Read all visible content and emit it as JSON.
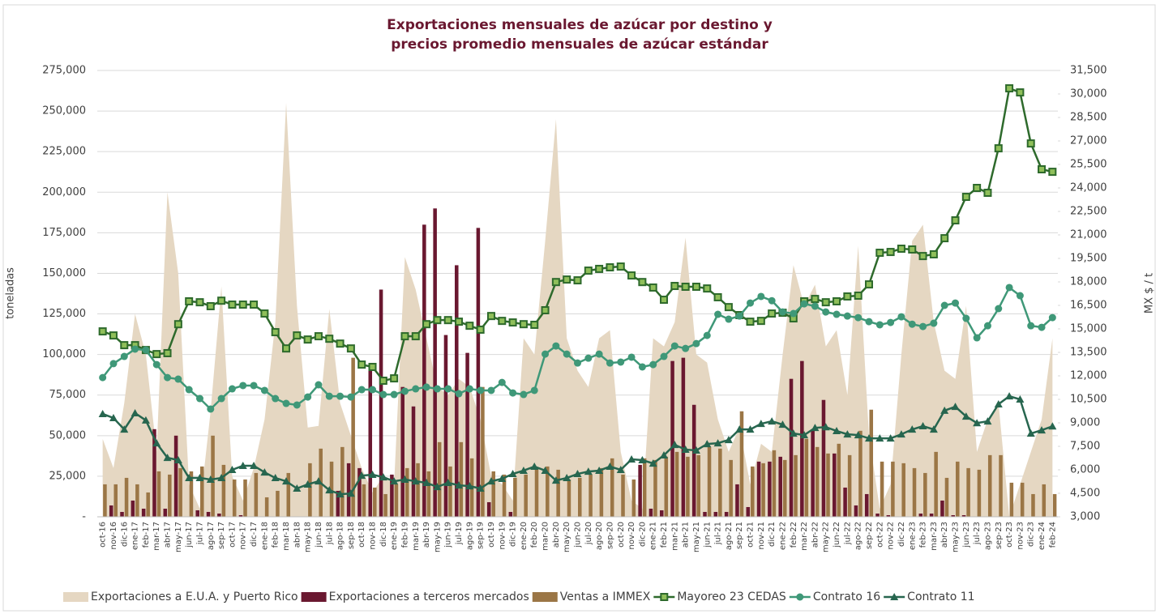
{
  "chart_data": {
    "type": "combo",
    "title": [
      "Exportaciones mensuales de azúcar por destino y",
      "precios promedio mensuales de azúcar estándar"
    ],
    "y_label": "toneladas",
    "y2_label": "MX $ / t",
    "categories": [
      "oct-16",
      "nov-16",
      "dic-16",
      "ene-17",
      "feb-17",
      "mar-17",
      "abr-17",
      "may-17",
      "jun-17",
      "jul-17",
      "ago-17",
      "sep-17",
      "oct-17",
      "nov-17",
      "dic-17",
      "ene-18",
      "feb-18",
      "mar-18",
      "abr-18",
      "may-18",
      "jun-18",
      "jul-18",
      "ago-18",
      "sep-18",
      "oct-18",
      "nov-18",
      "dic-18",
      "ene-19",
      "feb-19",
      "mar-19",
      "abr-19",
      "may-19",
      "jun-19",
      "jul-19",
      "ago-19",
      "sep-19",
      "oct-19",
      "nov-19",
      "dic-19",
      "ene-20",
      "feb-20",
      "mar-20",
      "abr-20",
      "may-20",
      "jun-20",
      "jul-20",
      "ago-20",
      "sep-20",
      "oct-20",
      "nov-20",
      "dic-20",
      "ene-21",
      "feb-21",
      "mar-21",
      "abr-21",
      "may-21",
      "jun-21",
      "jul-21",
      "ago-21",
      "sep-21",
      "oct-21",
      "nov-21",
      "dic-21",
      "ene-22",
      "feb-22",
      "mar-22",
      "abr-22",
      "may-22",
      "jun-22",
      "jul-22",
      "ago-22",
      "sep-22",
      "oct-22",
      "nov-22",
      "dic-22",
      "ene-23",
      "feb-23",
      "mar-23",
      "abr-23",
      "may-23",
      "jun-23",
      "jul-23",
      "ago-23",
      "sep-23",
      "oct-23",
      "nov-23",
      "dic-23",
      "ene-24",
      "feb-24"
    ],
    "ylim": [
      0,
      275000
    ],
    "yticks": [
      {
        "value": 0,
        "label": "-"
      },
      {
        "value": 25000,
        "label": "25,000"
      },
      {
        "value": 50000,
        "label": "50,000"
      },
      {
        "value": 75000,
        "label": "75,000"
      },
      {
        "value": 100000,
        "label": "100,000"
      },
      {
        "value": 125000,
        "label": "125,000"
      },
      {
        "value": 150000,
        "label": "150,000"
      },
      {
        "value": 175000,
        "label": "175,000"
      },
      {
        "value": 200000,
        "label": "200,000"
      },
      {
        "value": 225000,
        "label": "225,000"
      },
      {
        "value": 250000,
        "label": "250,000"
      },
      {
        "value": 275000,
        "label": "275,000"
      }
    ],
    "y2lim": [
      3000,
      31500
    ],
    "y2ticks": [
      {
        "value": 3000,
        "label": "3,000"
      },
      {
        "value": 4500,
        "label": "4,500"
      },
      {
        "value": 6000,
        "label": "6,000"
      },
      {
        "value": 7500,
        "label": "7,500"
      },
      {
        "value": 9000,
        "label": "9,000"
      },
      {
        "value": 10500,
        "label": "10,500"
      },
      {
        "value": 12000,
        "label": "12,000"
      },
      {
        "value": 13500,
        "label": "13,500"
      },
      {
        "value": 15000,
        "label": "15,000"
      },
      {
        "value": 16500,
        "label": "16,500"
      },
      {
        "value": 18000,
        "label": "18,000"
      },
      {
        "value": 19500,
        "label": "19,500"
      },
      {
        "value": 21000,
        "label": "21,000"
      },
      {
        "value": 22500,
        "label": "22,500"
      },
      {
        "value": 24000,
        "label": "24,000"
      },
      {
        "value": 25500,
        "label": "25,500"
      },
      {
        "value": 27000,
        "label": "27,000"
      },
      {
        "value": 28500,
        "label": "28,500"
      },
      {
        "value": 30000,
        "label": "30,000"
      },
      {
        "value": 31500,
        "label": "31,500"
      }
    ],
    "grid": true,
    "legend": "bottom",
    "series": [
      {
        "name": "Exportaciones a E.U.A. y Puerto Rico",
        "type": "area",
        "color": "#e5d7c2",
        "values": [
          48000,
          30000,
          70000,
          125000,
          100000,
          40000,
          200000,
          150000,
          20000,
          5000,
          65000,
          142000,
          25000,
          10000,
          30000,
          60000,
          120000,
          255000,
          130000,
          55000,
          56000,
          128000,
          70000,
          50000,
          30000,
          15000,
          25000,
          20000,
          160000,
          140000,
          110000,
          80000,
          75000,
          85000,
          80000,
          60000,
          25000,
          20000,
          10000,
          110000,
          100000,
          170000,
          245000,
          110000,
          90000,
          80000,
          110000,
          115000,
          40000,
          10000,
          5000,
          110000,
          105000,
          120000,
          172000,
          100000,
          95000,
          60000,
          40000,
          55000,
          20000,
          45000,
          40000,
          100000,
          155000,
          130000,
          143000,
          105000,
          115000,
          75000,
          167000,
          50000,
          5000,
          20000,
          100000,
          170000,
          180000,
          120000,
          90000,
          85000,
          130000,
          40000,
          60000,
          70000,
          0,
          20000,
          40000,
          60000,
          110000
        ]
      },
      {
        "name": "Exportaciones a terceros mercados",
        "type": "bar",
        "color": "#6a1830",
        "values": [
          0,
          7000,
          3000,
          10000,
          5000,
          54000,
          5000,
          50000,
          0,
          4000,
          3000,
          2000,
          0,
          1000,
          0,
          0,
          0,
          0,
          0,
          0,
          0,
          0,
          16000,
          33000,
          30000,
          90000,
          140000,
          26000,
          80000,
          68000,
          180000,
          190000,
          112000,
          155000,
          101000,
          178000,
          9000,
          0,
          3000,
          0,
          0,
          0,
          0,
          0,
          0,
          0,
          0,
          0,
          0,
          0,
          32000,
          5000,
          4000,
          96000,
          98000,
          69000,
          3000,
          3000,
          3000,
          20000,
          6000,
          34000,
          34000,
          37000,
          85000,
          96000,
          53000,
          72000,
          39000,
          18000,
          7000,
          14000,
          2000,
          1000,
          0,
          0,
          2000,
          2000,
          10000,
          1000,
          1000,
          0,
          0,
          0,
          0,
          0,
          0,
          0,
          0
        ]
      },
      {
        "name": "Ventas a IMMEX",
        "type": "bar",
        "color": "#9b7646",
        "values": [
          20000,
          20000,
          24000,
          20000,
          15000,
          28000,
          26000,
          30000,
          28000,
          31000,
          50000,
          32000,
          23000,
          23000,
          27000,
          12000,
          16000,
          27000,
          0,
          33000,
          42000,
          34000,
          43000,
          98000,
          20000,
          18000,
          14000,
          20000,
          30000,
          33000,
          28000,
          46000,
          31000,
          46000,
          36000,
          80000,
          28000,
          26000,
          24000,
          26000,
          30000,
          31000,
          29000,
          23000,
          24000,
          26000,
          30000,
          36000,
          26000,
          23000,
          36000,
          35000,
          37000,
          40000,
          37000,
          38000,
          43000,
          42000,
          35000,
          65000,
          31000,
          33000,
          41000,
          35000,
          38000,
          48000,
          43000,
          39000,
          45000,
          38000,
          53000,
          66000,
          34000,
          34000,
          33000,
          30000,
          27000,
          40000,
          24000,
          34000,
          30000,
          29000,
          38000,
          38000,
          21000,
          21000,
          14000,
          20000,
          14000
        ]
      },
      {
        "name": "Mayoreo 23 CEDAS",
        "type": "line",
        "axis": "y2",
        "marker": "square",
        "color": "#2e6a2c",
        "values": [
          14840,
          14580,
          13960,
          13960,
          13650,
          13390,
          13450,
          15300,
          16760,
          16700,
          16450,
          16800,
          16550,
          16550,
          16550,
          15980,
          14790,
          13750,
          14580,
          14320,
          14530,
          14370,
          14060,
          13750,
          12720,
          12570,
          11690,
          11840,
          14530,
          14530,
          15300,
          15560,
          15560,
          15460,
          15200,
          14950,
          15820,
          15510,
          15410,
          15300,
          15260,
          16190,
          17990,
          18150,
          18100,
          18720,
          18830,
          18930,
          18980,
          18410,
          17990,
          17640,
          16860,
          17740,
          17690,
          17690,
          17580,
          17020,
          16390,
          15880,
          15460,
          15510,
          15980,
          16030,
          15670,
          16760,
          16910,
          16700,
          16760,
          17070,
          17120,
          17840,
          19860,
          19910,
          20120,
          20070,
          19650,
          19760,
          20790,
          21930,
          23430,
          24000,
          23690,
          26530,
          30360,
          30100,
          26840,
          25190,
          25030
        ]
      },
      {
        "name": "Contrato 16",
        "type": "line",
        "axis": "y2",
        "marker": "circle",
        "color": "#3f9878",
        "values": [
          11890,
          12780,
          13240,
          13710,
          13650,
          12720,
          11890,
          11790,
          11120,
          10550,
          9880,
          10550,
          11170,
          11380,
          11380,
          11070,
          10550,
          10240,
          10140,
          10650,
          11430,
          10700,
          10700,
          10650,
          11120,
          11120,
          10810,
          10810,
          11020,
          11170,
          11280,
          11170,
          11170,
          10860,
          11170,
          11070,
          11070,
          11580,
          10910,
          10810,
          11070,
          13390,
          13910,
          13390,
          12820,
          13130,
          13390,
          12820,
          12880,
          13190,
          12570,
          12720,
          13240,
          13910,
          13750,
          14060,
          14580,
          15930,
          15620,
          15820,
          16650,
          17070,
          16800,
          16080,
          15980,
          16600,
          16450,
          16080,
          15930,
          15820,
          15720,
          15460,
          15260,
          15410,
          15770,
          15300,
          15150,
          15360,
          16500,
          16650,
          15670,
          14430,
          15200,
          16290,
          17640,
          17120,
          15200,
          15100,
          15720
        ]
      },
      {
        "name": "Contrato 11",
        "type": "line",
        "axis": "y2",
        "marker": "triangle",
        "color": "#27664f",
        "values": [
          9570,
          9310,
          8580,
          9620,
          9160,
          7700,
          6770,
          6620,
          5480,
          5480,
          5380,
          5480,
          6000,
          6260,
          6260,
          5840,
          5480,
          5270,
          4810,
          5070,
          5270,
          4700,
          4440,
          4490,
          5630,
          5690,
          5530,
          5270,
          5380,
          5270,
          5170,
          4910,
          5170,
          5010,
          4960,
          4810,
          5270,
          5430,
          5740,
          5950,
          6210,
          5950,
          5320,
          5480,
          5740,
          5890,
          5950,
          6210,
          6000,
          6670,
          6620,
          6410,
          6930,
          7600,
          7290,
          7240,
          7650,
          7700,
          7910,
          8580,
          8580,
          8940,
          9100,
          8890,
          8320,
          8220,
          8680,
          8730,
          8480,
          8270,
          8220,
          8010,
          8010,
          8010,
          8270,
          8580,
          8790,
          8580,
          9780,
          10030,
          9410,
          8990,
          9100,
          10190,
          10700,
          10500,
          8320,
          8530,
          8780
        ]
      }
    ]
  }
}
